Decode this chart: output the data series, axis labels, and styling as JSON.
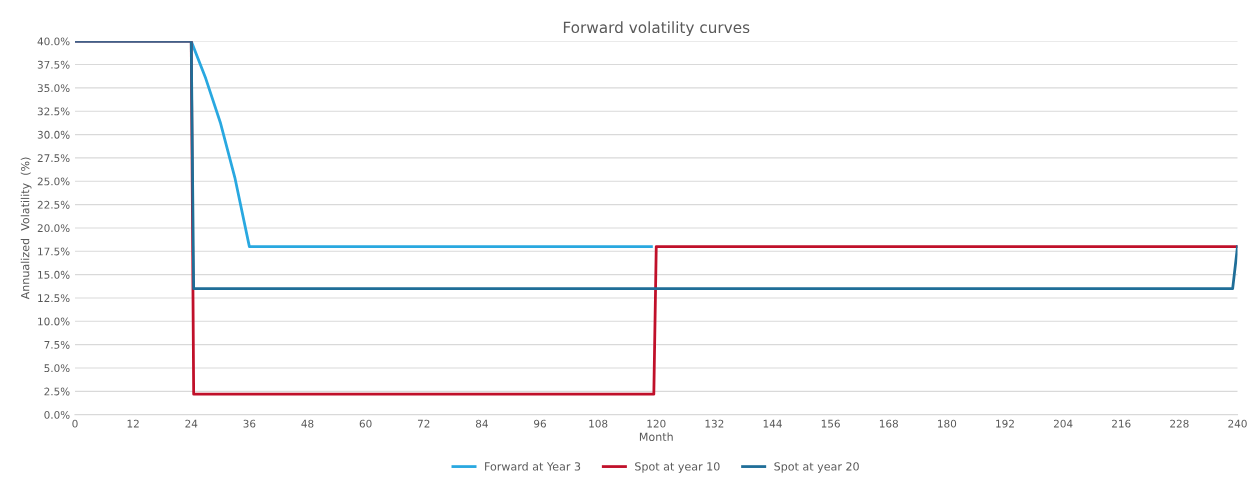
{
  "chart_data": {
    "type": "line",
    "title": "Forward volatility curves",
    "xlabel": "Month",
    "ylabel": "Annualized  Volatility  (%)",
    "xlim": [
      0,
      240
    ],
    "xticks": [
      0,
      12,
      24,
      36,
      48,
      60,
      72,
      84,
      96,
      108,
      120,
      132,
      144,
      156,
      168,
      180,
      192,
      204,
      216,
      228,
      240
    ],
    "ylim": [
      0,
      40
    ],
    "yticks": [
      {
        "value": 0,
        "label": "0.0%"
      },
      {
        "value": 2.5,
        "label": "2.5%"
      },
      {
        "value": 5,
        "label": "5.0%"
      },
      {
        "value": 7.5,
        "label": "7.5%"
      },
      {
        "value": 10,
        "label": "10.0%"
      },
      {
        "value": 12.5,
        "label": "12.5%"
      },
      {
        "value": 15,
        "label": "15.0%"
      },
      {
        "value": 17.5,
        "label": "17.5%"
      },
      {
        "value": 20,
        "label": "20.0%"
      },
      {
        "value": 22.5,
        "label": "22.5%"
      },
      {
        "value": 25,
        "label": "25.0%"
      },
      {
        "value": 27.5,
        "label": "27.5%"
      },
      {
        "value": 30,
        "label": "30.0%"
      },
      {
        "value": 32.5,
        "label": "32.5%"
      },
      {
        "value": 35,
        "label": "35.0%"
      },
      {
        "value": 37.5,
        "label": "37.5%"
      },
      {
        "value": 40,
        "label": "40.0%"
      }
    ],
    "grid": "y",
    "legend": "bottom",
    "marker": "none",
    "line_style": "solid",
    "series": [
      {
        "name": "Forward at Year 3",
        "color": "#29a8e0",
        "x": [
          0,
          24,
          27,
          30,
          33,
          36,
          119
        ],
        "values": [
          40,
          40,
          36,
          31.3,
          25.4,
          18,
          18
        ]
      },
      {
        "name": "Spot at year 10",
        "color": "#c0102a",
        "x": [
          0,
          24,
          24.5,
          119.5,
          120,
          240
        ],
        "values": [
          40,
          40,
          2.2,
          2.2,
          18,
          18
        ]
      },
      {
        "name": "Spot at year 20",
        "color": "#1f6e98",
        "x": [
          0,
          24,
          24.5,
          239,
          240
        ],
        "values": [
          40,
          40,
          13.5,
          13.5,
          18
        ]
      }
    ]
  }
}
